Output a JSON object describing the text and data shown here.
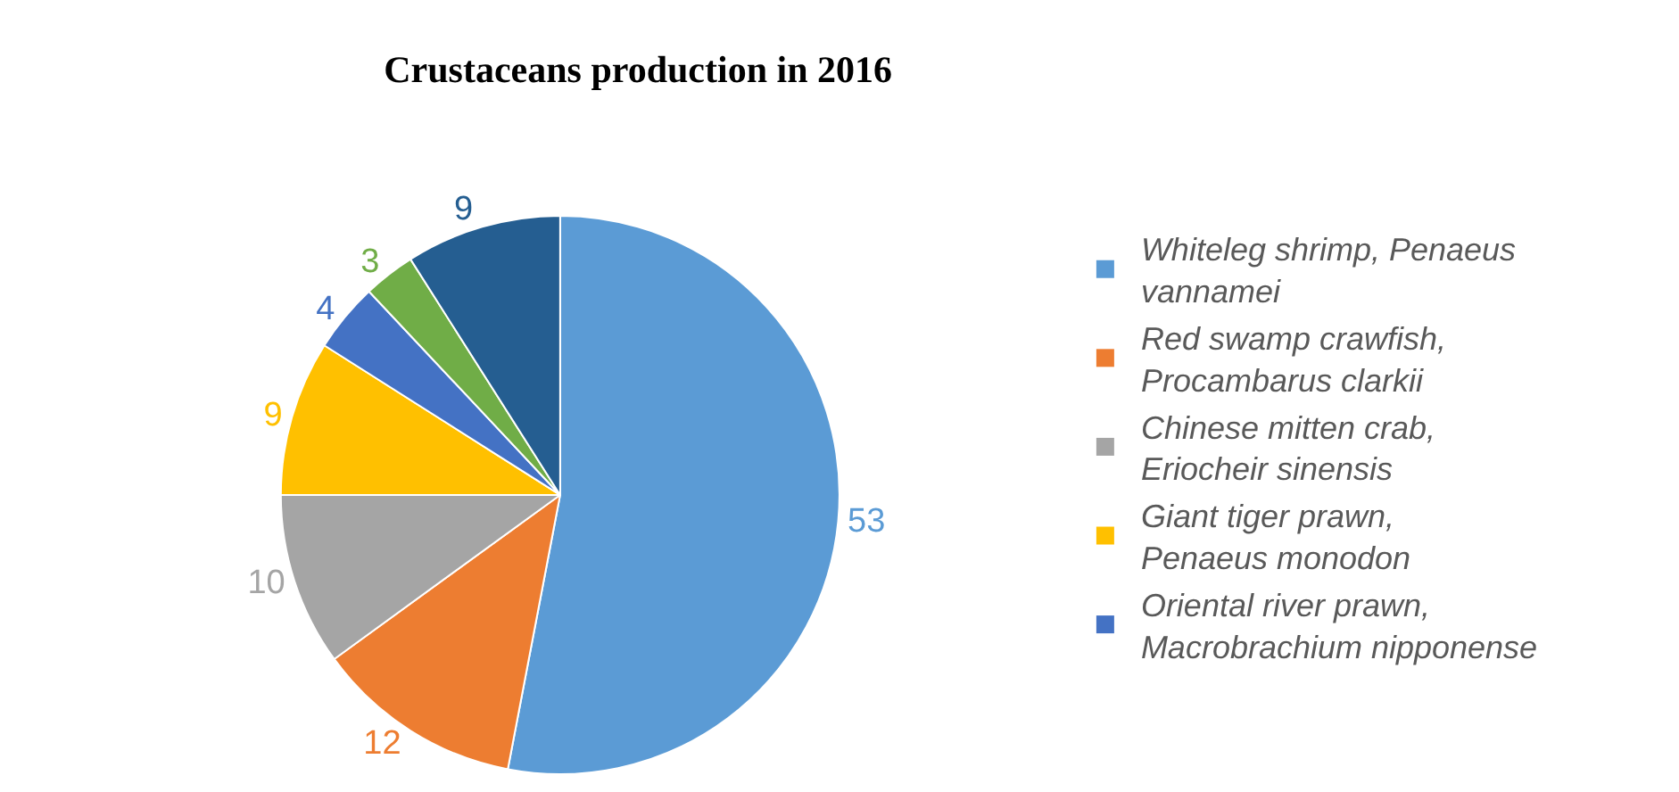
{
  "chart_data": {
    "type": "pie",
    "title": "Crustaceans production in 2016",
    "categories": [
      "Whiteleg shrimp, Penaeus vannamei",
      "Red swamp crawfish, Procambarus clarkii",
      "Chinese mitten crab, Eriocheir sinensis",
      "Giant tiger prawn, Penaeus monodon",
      "Oriental river prawn, Macrobrachium nipponense",
      null,
      null
    ],
    "values": [
      53,
      12,
      10,
      9,
      4,
      3,
      9
    ],
    "colors": [
      "#5b9bd5",
      "#ed7d31",
      "#a5a5a5",
      "#ffc000",
      "#4472c4",
      "#70ad47",
      "#255e91"
    ],
    "data_labels": true,
    "legend": "right"
  }
}
